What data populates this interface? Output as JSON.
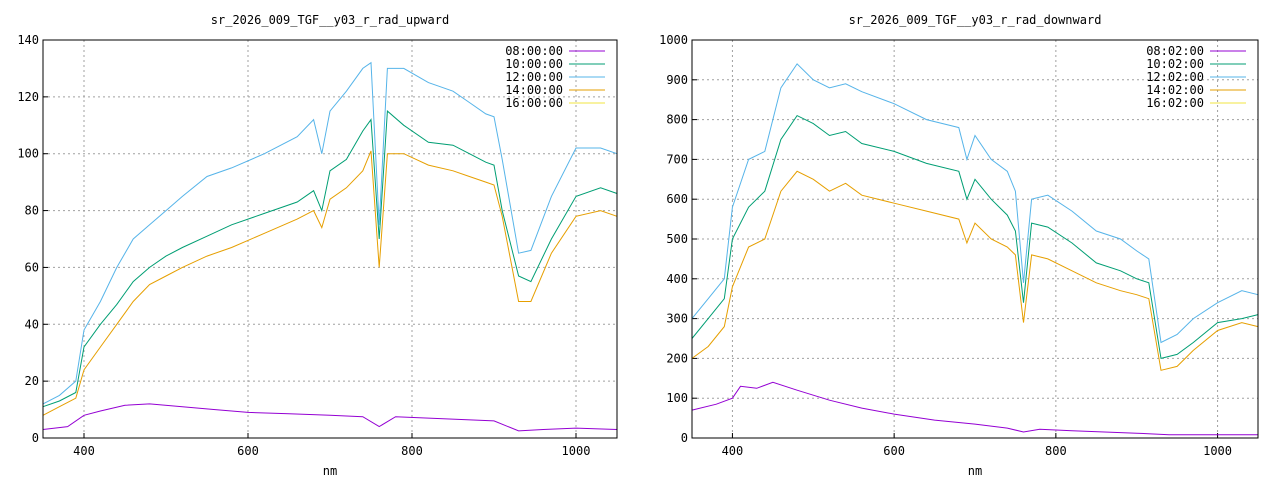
{
  "chart_data": [
    {
      "type": "line",
      "title": "sr_2026_009_TGF__y03_r_rad_upward",
      "xlabel": "nm",
      "ylabel": "",
      "xlim": [
        350,
        1050
      ],
      "ylim": [
        0,
        140
      ],
      "xticks": [
        400,
        600,
        800,
        1000
      ],
      "yticks": [
        0,
        20,
        40,
        60,
        80,
        100,
        120,
        140
      ],
      "grid": true,
      "legend_position": "top-right",
      "series": [
        {
          "name": "08:00:00",
          "color": "#9400d3",
          "points": [
            [
              350,
              3
            ],
            [
              380,
              4
            ],
            [
              400,
              8
            ],
            [
              420,
              9.5
            ],
            [
              450,
              11.5
            ],
            [
              480,
              12
            ],
            [
              520,
              11
            ],
            [
              560,
              10
            ],
            [
              600,
              9
            ],
            [
              650,
              8.5
            ],
            [
              700,
              8
            ],
            [
              740,
              7.5
            ],
            [
              760,
              4
            ],
            [
              780,
              7.5
            ],
            [
              820,
              7
            ],
            [
              860,
              6.5
            ],
            [
              900,
              6
            ],
            [
              930,
              2.5
            ],
            [
              960,
              3
            ],
            [
              1000,
              3.5
            ],
            [
              1050,
              3
            ]
          ]
        },
        {
          "name": "10:00:00",
          "color": "#009e73",
          "points": [
            [
              350,
              11
            ],
            [
              370,
              13
            ],
            [
              390,
              16
            ],
            [
              400,
              32
            ],
            [
              420,
              40
            ],
            [
              440,
              47
            ],
            [
              460,
              55
            ],
            [
              480,
              60
            ],
            [
              500,
              64
            ],
            [
              520,
              67
            ],
            [
              550,
              71
            ],
            [
              580,
              75
            ],
            [
              620,
              79
            ],
            [
              660,
              83
            ],
            [
              680,
              87
            ],
            [
              690,
              80
            ],
            [
              700,
              94
            ],
            [
              720,
              98
            ],
            [
              740,
              108
            ],
            [
              750,
              112
            ],
            [
              760,
              70
            ],
            [
              770,
              115
            ],
            [
              790,
              110
            ],
            [
              820,
              104
            ],
            [
              850,
              103
            ],
            [
              870,
              100
            ],
            [
              890,
              97
            ],
            [
              900,
              96
            ],
            [
              910,
              80
            ],
            [
              930,
              57
            ],
            [
              945,
              55
            ],
            [
              970,
              70
            ],
            [
              1000,
              85
            ],
            [
              1030,
              88
            ],
            [
              1050,
              86
            ]
          ]
        },
        {
          "name": "12:00:00",
          "color": "#56b4e9",
          "points": [
            [
              350,
              12
            ],
            [
              370,
              15
            ],
            [
              390,
              20
            ],
            [
              400,
              38
            ],
            [
              420,
              48
            ],
            [
              440,
              60
            ],
            [
              460,
              70
            ],
            [
              480,
              75
            ],
            [
              500,
              80
            ],
            [
              520,
              85
            ],
            [
              550,
              92
            ],
            [
              580,
              95
            ],
            [
              620,
              100
            ],
            [
              660,
              106
            ],
            [
              680,
              112
            ],
            [
              690,
              100
            ],
            [
              700,
              115
            ],
            [
              720,
              122
            ],
            [
              740,
              130
            ],
            [
              750,
              132
            ],
            [
              760,
              75
            ],
            [
              770,
              130
            ],
            [
              790,
              130
            ],
            [
              820,
              125
            ],
            [
              850,
              122
            ],
            [
              870,
              118
            ],
            [
              890,
              114
            ],
            [
              900,
              113
            ],
            [
              910,
              98
            ],
            [
              930,
              65
            ],
            [
              945,
              66
            ],
            [
              970,
              85
            ],
            [
              1000,
              102
            ],
            [
              1030,
              102
            ],
            [
              1050,
              100
            ]
          ]
        },
        {
          "name": "14:00:00",
          "color": "#e69f00",
          "points": [
            [
              350,
              8
            ],
            [
              370,
              11
            ],
            [
              390,
              14
            ],
            [
              400,
              24
            ],
            [
              420,
              32
            ],
            [
              440,
              40
            ],
            [
              460,
              48
            ],
            [
              480,
              54
            ],
            [
              500,
              57
            ],
            [
              520,
              60
            ],
            [
              550,
              64
            ],
            [
              580,
              67
            ],
            [
              620,
              72
            ],
            [
              660,
              77
            ],
            [
              680,
              80
            ],
            [
              690,
              74
            ],
            [
              700,
              84
            ],
            [
              720,
              88
            ],
            [
              740,
              94
            ],
            [
              750,
              101
            ],
            [
              760,
              60
            ],
            [
              770,
              100
            ],
            [
              790,
              100
            ],
            [
              820,
              96
            ],
            [
              850,
              94
            ],
            [
              870,
              92
            ],
            [
              890,
              90
            ],
            [
              900,
              89
            ],
            [
              910,
              78
            ],
            [
              930,
              48
            ],
            [
              945,
              48
            ],
            [
              970,
              65
            ],
            [
              1000,
              78
            ],
            [
              1030,
              80
            ],
            [
              1050,
              78
            ]
          ]
        },
        {
          "name": "16:00:00",
          "color": "#f0e442",
          "points": []
        }
      ]
    },
    {
      "type": "line",
      "title": "sr_2026_009_TGF__y03_r_rad_downward",
      "xlabel": "nm",
      "ylabel": "",
      "xlim": [
        350,
        1050
      ],
      "ylim": [
        0,
        1000
      ],
      "xticks": [
        400,
        600,
        800,
        1000
      ],
      "yticks": [
        0,
        100,
        200,
        300,
        400,
        500,
        600,
        700,
        800,
        900,
        1000
      ],
      "grid": true,
      "legend_position": "top-right",
      "series": [
        {
          "name": "08:02:00",
          "color": "#9400d3",
          "points": [
            [
              350,
              70
            ],
            [
              380,
              85
            ],
            [
              400,
              100
            ],
            [
              410,
              130
            ],
            [
              430,
              125
            ],
            [
              450,
              140
            ],
            [
              480,
              120
            ],
            [
              520,
              95
            ],
            [
              560,
              75
            ],
            [
              600,
              60
            ],
            [
              650,
              45
            ],
            [
              700,
              35
            ],
            [
              740,
              25
            ],
            [
              760,
              15
            ],
            [
              780,
              22
            ],
            [
              820,
              18
            ],
            [
              860,
              15
            ],
            [
              900,
              12
            ],
            [
              940,
              8
            ],
            [
              1000,
              8
            ],
            [
              1050,
              8
            ]
          ]
        },
        {
          "name": "10:02:00",
          "color": "#009e73",
          "points": [
            [
              350,
              250
            ],
            [
              370,
              300
            ],
            [
              390,
              350
            ],
            [
              400,
              500
            ],
            [
              420,
              580
            ],
            [
              440,
              620
            ],
            [
              460,
              750
            ],
            [
              480,
              810
            ],
            [
              500,
              790
            ],
            [
              520,
              760
            ],
            [
              540,
              770
            ],
            [
              560,
              740
            ],
            [
              600,
              720
            ],
            [
              640,
              690
            ],
            [
              680,
              670
            ],
            [
              690,
              600
            ],
            [
              700,
              650
            ],
            [
              720,
              600
            ],
            [
              740,
              560
            ],
            [
              750,
              520
            ],
            [
              760,
              340
            ],
            [
              770,
              540
            ],
            [
              790,
              530
            ],
            [
              820,
              490
            ],
            [
              850,
              440
            ],
            [
              880,
              420
            ],
            [
              900,
              400
            ],
            [
              915,
              390
            ],
            [
              930,
              200
            ],
            [
              950,
              210
            ],
            [
              970,
              240
            ],
            [
              1000,
              290
            ],
            [
              1030,
              300
            ],
            [
              1050,
              310
            ]
          ]
        },
        {
          "name": "12:02:00",
          "color": "#56b4e9",
          "points": [
            [
              350,
              300
            ],
            [
              370,
              350
            ],
            [
              390,
              400
            ],
            [
              400,
              580
            ],
            [
              420,
              700
            ],
            [
              440,
              720
            ],
            [
              460,
              880
            ],
            [
              480,
              940
            ],
            [
              500,
              900
            ],
            [
              520,
              880
            ],
            [
              540,
              890
            ],
            [
              560,
              870
            ],
            [
              600,
              840
            ],
            [
              640,
              800
            ],
            [
              680,
              780
            ],
            [
              690,
              700
            ],
            [
              700,
              760
            ],
            [
              720,
              700
            ],
            [
              740,
              670
            ],
            [
              750,
              620
            ],
            [
              760,
              390
            ],
            [
              770,
              600
            ],
            [
              790,
              610
            ],
            [
              820,
              570
            ],
            [
              850,
              520
            ],
            [
              880,
              500
            ],
            [
              900,
              470
            ],
            [
              915,
              450
            ],
            [
              930,
              240
            ],
            [
              950,
              260
            ],
            [
              970,
              300
            ],
            [
              1000,
              340
            ],
            [
              1030,
              370
            ],
            [
              1050,
              360
            ]
          ]
        },
        {
          "name": "14:02:00",
          "color": "#e69f00",
          "points": [
            [
              350,
              200
            ],
            [
              370,
              230
            ],
            [
              390,
              280
            ],
            [
              400,
              380
            ],
            [
              420,
              480
            ],
            [
              440,
              500
            ],
            [
              460,
              620
            ],
            [
              480,
              670
            ],
            [
              500,
              650
            ],
            [
              520,
              620
            ],
            [
              540,
              640
            ],
            [
              560,
              610
            ],
            [
              600,
              590
            ],
            [
              640,
              570
            ],
            [
              680,
              550
            ],
            [
              690,
              490
            ],
            [
              700,
              540
            ],
            [
              720,
              500
            ],
            [
              740,
              480
            ],
            [
              750,
              460
            ],
            [
              760,
              290
            ],
            [
              770,
              460
            ],
            [
              790,
              450
            ],
            [
              820,
              420
            ],
            [
              850,
              390
            ],
            [
              880,
              370
            ],
            [
              900,
              360
            ],
            [
              915,
              350
            ],
            [
              930,
              170
            ],
            [
              950,
              180
            ],
            [
              970,
              220
            ],
            [
              1000,
              270
            ],
            [
              1030,
              290
            ],
            [
              1050,
              280
            ]
          ]
        },
        {
          "name": "16:02:00",
          "color": "#f0e442",
          "points": []
        }
      ]
    }
  ]
}
